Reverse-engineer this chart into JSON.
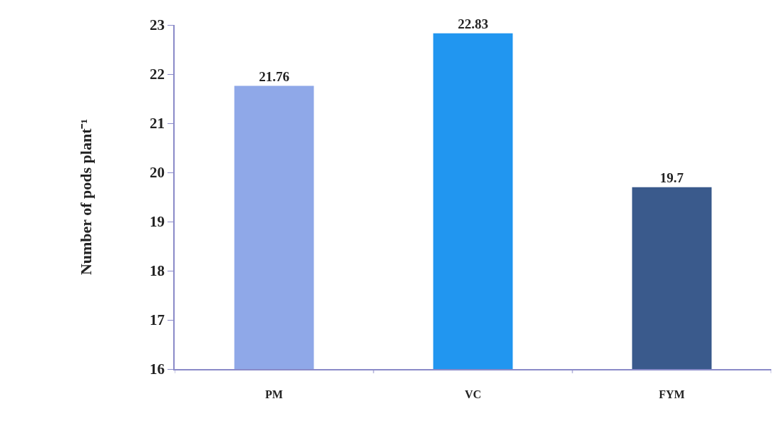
{
  "chart_data": {
    "type": "bar",
    "ylabel": "Number of pods plant⁻¹",
    "categories": [
      "PM",
      "VC",
      "FYM"
    ],
    "values": [
      21.76,
      22.83,
      19.7
    ],
    "colors": [
      "#8fa8e8",
      "#2196f0",
      "#3a5a8c"
    ],
    "ylim": [
      16,
      23
    ],
    "yticks": [
      16,
      17,
      18,
      19,
      20,
      21,
      22,
      23
    ],
    "data_labels": true
  }
}
